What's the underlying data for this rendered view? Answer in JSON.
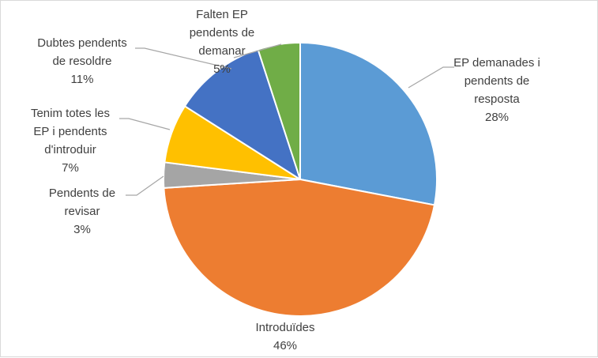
{
  "chart_data": {
    "type": "pie",
    "title": "",
    "slices": [
      {
        "label_lines": [
          "EP demanades i",
          "pendents de",
          "resposta"
        ],
        "percent_text": "28%",
        "value": 28,
        "color": "#5b9bd5"
      },
      {
        "label_lines": [
          "Introduïdes"
        ],
        "percent_text": "46%",
        "value": 46,
        "color": "#ed7d31"
      },
      {
        "label_lines": [
          "Pendents de",
          "revisar"
        ],
        "percent_text": "3%",
        "value": 3,
        "color": "#a5a5a5"
      },
      {
        "label_lines": [
          "Tenim totes les",
          "EP i pendents",
          "d'introduir"
        ],
        "percent_text": "7%",
        "value": 7,
        "color": "#ffc000"
      },
      {
        "label_lines": [
          "Dubtes pendents",
          "de resoldre"
        ],
        "percent_text": "11%",
        "value": 11,
        "color": "#4472c4"
      },
      {
        "label_lines": [
          "Falten EP",
          "pendents de",
          "demanar"
        ],
        "percent_text": "5%",
        "value": 5,
        "color": "#70ad47"
      }
    ],
    "start_angle": "12 o'clock",
    "direction": "clockwise",
    "legend": "none",
    "leader_line_color": "#a6a6a6"
  }
}
